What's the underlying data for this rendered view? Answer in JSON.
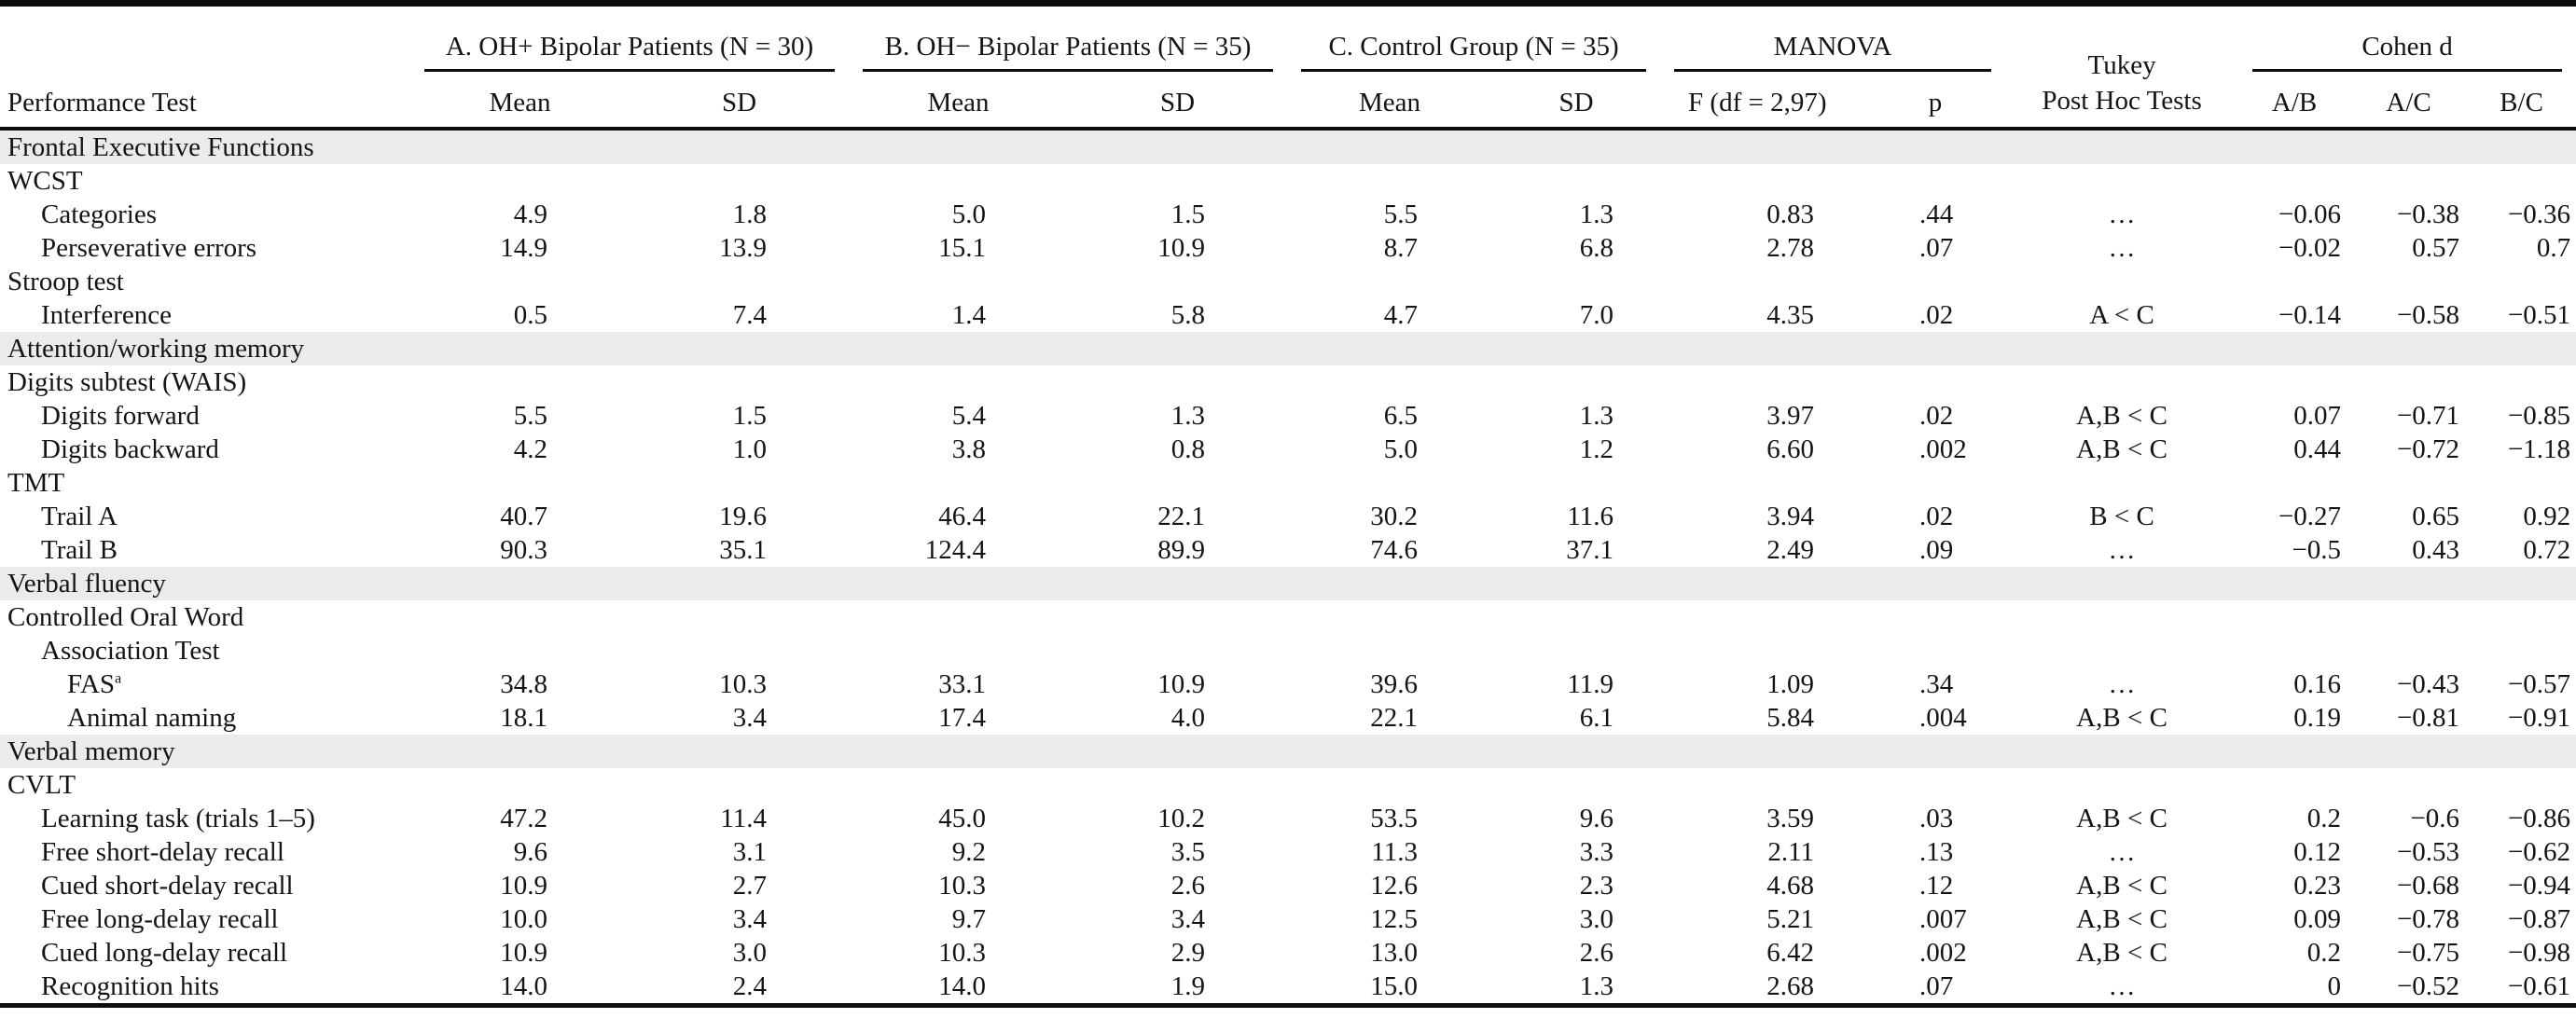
{
  "colors": {
    "section_bg": "#ebebeb",
    "rule": "#0d0d0d",
    "text": "#141414"
  },
  "table": {
    "header": {
      "performance_test": "Performance Test",
      "group_a": "A. OH+ Bipolar Patients (N = 30)",
      "group_b": "B. OH− Bipolar Patients (N = 35)",
      "group_c": "C. Control Group (N = 35)",
      "manova": "MANOVA",
      "tukey_line1": "Tukey",
      "tukey_line2": "Post Hoc Tests",
      "cohen_d": "Cohen d",
      "mean": "Mean",
      "sd": "SD",
      "f": "F (df = 2,97)",
      "p": "p",
      "ab": "A/B",
      "ac": "A/C",
      "bc": "B/C"
    },
    "rows": [
      {
        "type": "section",
        "label": "Frontal Executive Functions"
      },
      {
        "type": "group",
        "indent": 0,
        "label": "WCST"
      },
      {
        "type": "data",
        "indent": 1,
        "label": "Categories",
        "values": [
          "4.9",
          "1.8",
          "5.0",
          "1.5",
          "5.5",
          "1.3",
          "0.83",
          ".44",
          "…",
          "−0.06",
          "−0.38",
          "−0.36"
        ]
      },
      {
        "type": "data",
        "indent": 1,
        "label": "Perseverative errors",
        "values": [
          "14.9",
          "13.9",
          "15.1",
          "10.9",
          "8.7",
          "6.8",
          "2.78",
          ".07",
          "…",
          "−0.02",
          "0.57",
          "0.7"
        ]
      },
      {
        "type": "group",
        "indent": 0,
        "label": "Stroop test"
      },
      {
        "type": "data",
        "indent": 1,
        "label": "Interference",
        "values": [
          "0.5",
          "7.4",
          "1.4",
          "5.8",
          "4.7",
          "7.0",
          "4.35",
          ".02",
          "A < C",
          "−0.14",
          "−0.58",
          "−0.51"
        ]
      },
      {
        "type": "section",
        "label": "Attention/working memory"
      },
      {
        "type": "group",
        "indent": 0,
        "label": "Digits subtest (WAIS)"
      },
      {
        "type": "data",
        "indent": 1,
        "label": "Digits forward",
        "values": [
          "5.5",
          "1.5",
          "5.4",
          "1.3",
          "6.5",
          "1.3",
          "3.97",
          ".02",
          "A,B < C",
          "0.07",
          "−0.71",
          "−0.85"
        ]
      },
      {
        "type": "data",
        "indent": 1,
        "label": "Digits backward",
        "values": [
          "4.2",
          "1.0",
          "3.8",
          "0.8",
          "5.0",
          "1.2",
          "6.60",
          ".002",
          "A,B < C",
          "0.44",
          "−0.72",
          "−1.18"
        ]
      },
      {
        "type": "group",
        "indent": 0,
        "label": "TMT"
      },
      {
        "type": "data",
        "indent": 1,
        "label": "Trail A",
        "values": [
          "40.7",
          "19.6",
          "46.4",
          "22.1",
          "30.2",
          "11.6",
          "3.94",
          ".02",
          "B < C",
          "−0.27",
          "0.65",
          "0.92"
        ]
      },
      {
        "type": "data",
        "indent": 1,
        "label": "Trail B",
        "values": [
          "90.3",
          "35.1",
          "124.4",
          "89.9",
          "74.6",
          "37.1",
          "2.49",
          ".09",
          "…",
          "−0.5",
          "0.43",
          "0.72"
        ]
      },
      {
        "type": "section",
        "label": "Verbal fluency"
      },
      {
        "type": "group",
        "indent": 0,
        "label": "Controlled Oral Word"
      },
      {
        "type": "group",
        "indent": 1,
        "label": "Association Test"
      },
      {
        "type": "data",
        "indent": 2,
        "label": "FAS",
        "sup": "a",
        "values": [
          "34.8",
          "10.3",
          "33.1",
          "10.9",
          "39.6",
          "11.9",
          "1.09",
          ".34",
          "…",
          "0.16",
          "−0.43",
          "−0.57"
        ]
      },
      {
        "type": "data",
        "indent": 2,
        "label": "Animal naming",
        "values": [
          "18.1",
          "3.4",
          "17.4",
          "4.0",
          "22.1",
          "6.1",
          "5.84",
          ".004",
          "A,B < C",
          "0.19",
          "−0.81",
          "−0.91"
        ]
      },
      {
        "type": "section",
        "label": "Verbal memory"
      },
      {
        "type": "group",
        "indent": 0,
        "label": "CVLT"
      },
      {
        "type": "data",
        "indent": 1,
        "label": "Learning task (trials 1–5)",
        "values": [
          "47.2",
          "11.4",
          "45.0",
          "10.2",
          "53.5",
          "9.6",
          "3.59",
          ".03",
          "A,B < C",
          "0.2",
          "−0.6",
          "−0.86"
        ]
      },
      {
        "type": "data",
        "indent": 1,
        "label": "Free short-delay recall",
        "values": [
          "9.6",
          "3.1",
          "9.2",
          "3.5",
          "11.3",
          "3.3",
          "2.11",
          ".13",
          "…",
          "0.12",
          "−0.53",
          "−0.62"
        ]
      },
      {
        "type": "data",
        "indent": 1,
        "label": "Cued short-delay recall",
        "values": [
          "10.9",
          "2.7",
          "10.3",
          "2.6",
          "12.6",
          "2.3",
          "4.68",
          ".12",
          "A,B < C",
          "0.23",
          "−0.68",
          "−0.94"
        ]
      },
      {
        "type": "data",
        "indent": 1,
        "label": "Free long-delay recall",
        "values": [
          "10.0",
          "3.4",
          "9.7",
          "3.4",
          "12.5",
          "3.0",
          "5.21",
          ".007",
          "A,B < C",
          "0.09",
          "−0.78",
          "−0.87"
        ]
      },
      {
        "type": "data",
        "indent": 1,
        "label": "Cued long-delay recall",
        "values": [
          "10.9",
          "3.0",
          "10.3",
          "2.9",
          "13.0",
          "2.6",
          "6.42",
          ".002",
          "A,B < C",
          "0.2",
          "−0.75",
          "−0.98"
        ]
      },
      {
        "type": "data",
        "indent": 1,
        "label": "Recognition hits",
        "values": [
          "14.0",
          "2.4",
          "14.0",
          "1.9",
          "15.0",
          "1.3",
          "2.68",
          ".07",
          "…",
          "0",
          "−0.52",
          "−0.61"
        ]
      }
    ]
  }
}
